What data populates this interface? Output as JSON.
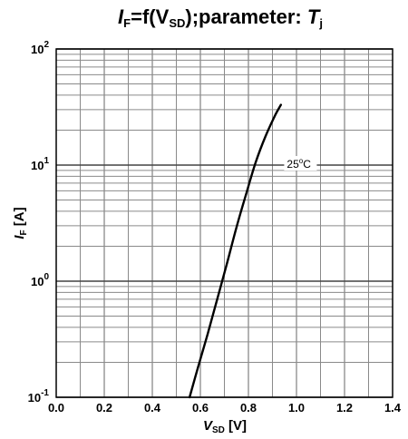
{
  "chart_data": {
    "type": "line",
    "title": {
      "prefix": "I",
      "prefix_sub": "F",
      "mid": "=f(V",
      "mid_sub": "SD",
      "after": ");parameter: ",
      "param": "T",
      "param_sub": "j"
    },
    "xlabel": {
      "main": "V",
      "sub": "SD",
      "unit": " [V]"
    },
    "ylabel": {
      "main": "I",
      "sub": "F",
      "unit": " [A]"
    },
    "xlim": [
      0.0,
      1.4
    ],
    "ylim": [
      0.1,
      100
    ],
    "yscale": "log",
    "grid": true,
    "x_ticks": [
      "0.0",
      "0.2",
      "0.4",
      "0.6",
      "0.8",
      "1.0",
      "1.2",
      "1.4"
    ],
    "y_ticks": [
      {
        "value": 0.1,
        "base": "10",
        "exp": "-1"
      },
      {
        "value": 1,
        "base": "10",
        "exp": "0"
      },
      {
        "value": 10,
        "base": "10",
        "exp": "1"
      },
      {
        "value": 100,
        "base": "10",
        "exp": "2"
      }
    ],
    "series": [
      {
        "name": "25°C",
        "x": [
          0.555,
          0.59,
          0.63,
          0.67,
          0.71,
          0.75,
          0.79,
          0.83,
          0.87,
          0.91,
          0.935
        ],
        "y": [
          0.1,
          0.18,
          0.35,
          0.7,
          1.4,
          2.9,
          5.6,
          10.5,
          17.5,
          26.5,
          33
        ]
      }
    ],
    "annotations": [
      {
        "text_main": "25",
        "text_sup": "o",
        "text_tail": "C",
        "x": 0.96,
        "y": 10
      }
    ]
  }
}
